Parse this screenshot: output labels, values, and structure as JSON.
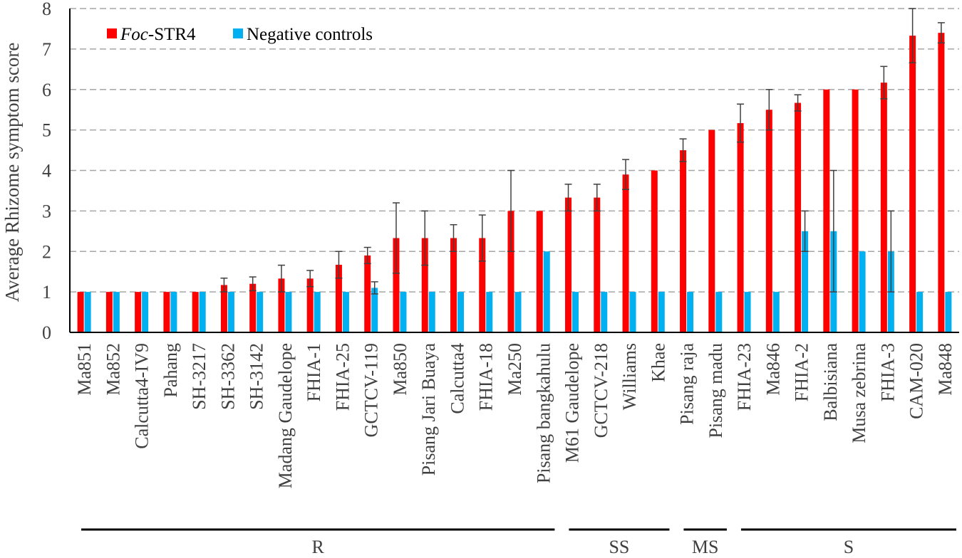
{
  "chart_data": {
    "type": "bar",
    "title": "",
    "xlabel": "",
    "ylabel": "Average Rhizome symptom score",
    "ylim": [
      0,
      8
    ],
    "yticks": [
      0,
      1,
      2,
      3,
      4,
      5,
      6,
      7,
      8
    ],
    "grid": "horizontal dashed",
    "legend_position": "top-left",
    "categories": [
      "Ma851",
      "Ma852",
      "Calcutta4-IV9",
      "Pahang",
      "SH-3217",
      "SH-3362",
      "SH-3142",
      "Madang Gaudelope",
      "FHIA-1",
      "FHIA-25",
      "GCTCV-119",
      "Ma850",
      "Pisang Jari Buaya",
      "Calcutta4",
      "FHIA-18",
      "Ma250",
      "Pisang bangkahulu",
      "M61 Gaudelope",
      "GCTCV-218",
      "Williams",
      "Khae",
      "Pisang raja",
      "Pisang madu",
      "FHIA-23",
      "Ma846",
      "FHIA-2",
      "Balbisiana",
      "Musa zebrina",
      "FHIA-3",
      "CAM-020",
      "Ma848"
    ],
    "series": [
      {
        "name_italic": "Foc",
        "name_rest": "-STR4",
        "color": "#ff0000",
        "values": [
          1,
          1,
          1,
          1,
          1,
          1.17,
          1.2,
          1.33,
          1.33,
          1.67,
          1.9,
          2.33,
          2.33,
          2.33,
          2.33,
          3,
          3,
          3.33,
          3.33,
          3.9,
          4,
          4.5,
          5,
          5.17,
          5.5,
          5.67,
          6,
          6,
          6.17,
          7.33,
          7.4
        ],
        "errors": [
          0,
          0,
          0,
          0,
          0,
          0.17,
          0.17,
          0.33,
          0.2,
          0.33,
          0.2,
          0.87,
          0.67,
          0.33,
          0.57,
          1,
          0,
          0.33,
          0.33,
          0.37,
          0,
          0.28,
          0,
          0.47,
          0.5,
          0.2,
          0,
          0,
          0.4,
          0.67,
          0.25
        ]
      },
      {
        "name": "Negative controls",
        "color": "#00b0f0",
        "values": [
          1,
          1,
          1,
          1,
          1,
          1,
          1,
          1,
          1,
          1,
          1.1,
          1,
          1,
          1,
          1,
          1,
          2,
          1,
          1,
          1,
          1,
          1,
          1,
          1,
          1,
          2.5,
          2.5,
          2,
          2,
          1,
          1
        ],
        "errors": [
          0,
          0,
          0,
          0,
          0,
          0,
          0,
          0,
          0,
          0,
          0.15,
          0,
          0,
          0,
          0,
          0,
          0,
          0,
          0,
          0,
          0,
          0,
          0,
          0,
          0,
          0.5,
          1.5,
          0,
          1,
          0,
          0
        ]
      }
    ],
    "groups": [
      {
        "label": "R",
        "from": 0,
        "to": 16
      },
      {
        "label": "SS",
        "from": 17,
        "to": 20
      },
      {
        "label": "MS",
        "from": 21,
        "to": 22
      },
      {
        "label": "S",
        "from": 23,
        "to": 30
      }
    ]
  }
}
